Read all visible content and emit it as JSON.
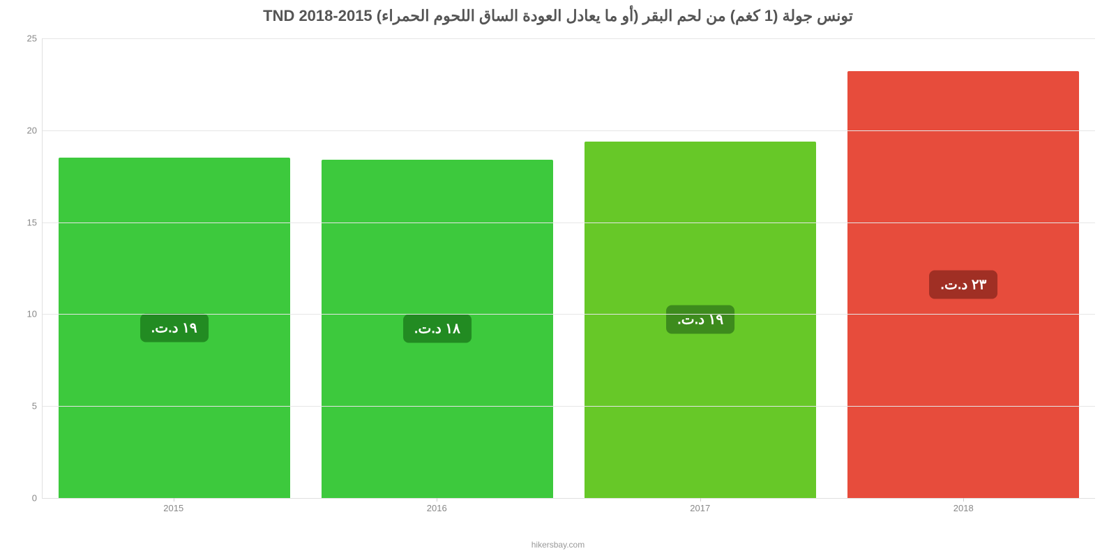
{
  "title": "تونس جولة (1 كغم) من لحم البقر (أو ما يعادل العودة الساق اللحوم الحمراء) TND 2018-2015",
  "title_color": "#555555",
  "title_fontsize": 22,
  "attribution": "hikersbay.com",
  "chart": {
    "type": "bar",
    "background_color": "#ffffff",
    "grid_color": "#e6e6e6",
    "axis_label_color": "#888888",
    "axis_label_fontsize": 13,
    "ylim": [
      0,
      25
    ],
    "ytick_step": 5,
    "yticks": [
      0,
      5,
      10,
      15,
      20,
      25
    ],
    "categories": [
      "2015",
      "2016",
      "2017",
      "2018"
    ],
    "values": [
      18.5,
      18.4,
      19.4,
      23.2
    ],
    "bar_width": 0.88,
    "bar_colors": [
      "#3dc93d",
      "#3dc93d",
      "#67c828",
      "#e74c3c"
    ],
    "value_labels": [
      "١٩ د.ت.",
      "١٨ د.ت.",
      "١٩ د.ت.",
      "٢٣ د.ت."
    ],
    "value_label_bg": [
      "#228b22",
      "#228b22",
      "#3d8b1d",
      "#a02f24"
    ],
    "value_label_fontsize": 20,
    "value_label_color": "#ffffff"
  }
}
